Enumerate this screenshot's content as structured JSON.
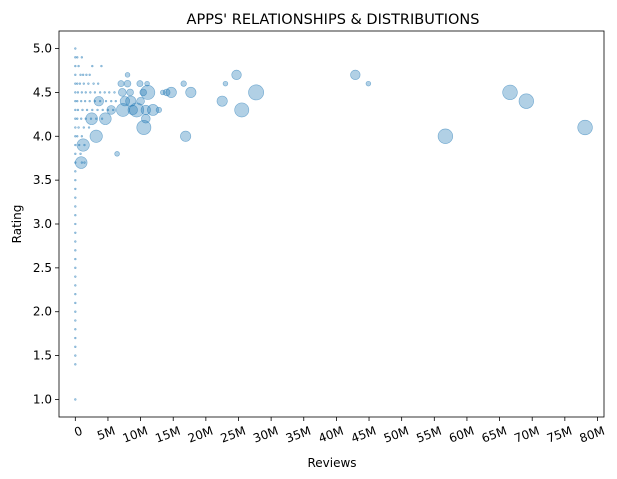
{
  "chart_data": {
    "type": "scatter",
    "title": "APPS' RELATIONSHIPS & DISTRIBUTIONS",
    "xlabel": "Reviews",
    "ylabel": "Rating",
    "xlim": [
      -2500000,
      81000000
    ],
    "ylim": [
      0.8,
      5.2
    ],
    "x_ticks": [
      0,
      5000000,
      10000000,
      15000000,
      20000000,
      25000000,
      30000000,
      35000000,
      40000000,
      45000000,
      50000000,
      55000000,
      60000000,
      65000000,
      70000000,
      75000000,
      80000000
    ],
    "x_tick_labels": [
      "0",
      "5M",
      "10M",
      "15M",
      "20M",
      "25M",
      "30M",
      "35M",
      "40M",
      "45M",
      "50M",
      "55M",
      "60M",
      "65M",
      "70M",
      "75M",
      "80M"
    ],
    "y_ticks": [
      1.0,
      1.5,
      2.0,
      2.5,
      3.0,
      3.5,
      4.0,
      4.5,
      5.0
    ],
    "y_tick_labels": [
      "1.0",
      "1.5",
      "2.0",
      "2.5",
      "3.0",
      "3.5",
      "4.0",
      "4.5",
      "5.0"
    ],
    "grid": false,
    "color": "#1f77b4",
    "opacity": 0.35,
    "points": [
      {
        "x": 0,
        "y": 5.0
      },
      {
        "x": 0,
        "y": 4.9
      },
      {
        "x": 0,
        "y": 4.8
      },
      {
        "x": 0,
        "y": 4.7
      },
      {
        "x": 0,
        "y": 4.6
      },
      {
        "x": 0,
        "y": 4.5
      },
      {
        "x": 0,
        "y": 4.4
      },
      {
        "x": 0,
        "y": 4.3
      },
      {
        "x": 0,
        "y": 4.2
      },
      {
        "x": 0,
        "y": 4.1
      },
      {
        "x": 0,
        "y": 4.0
      },
      {
        "x": 0,
        "y": 3.9
      },
      {
        "x": 0,
        "y": 3.8
      },
      {
        "x": 0,
        "y": 3.7
      },
      {
        "x": 0,
        "y": 3.6
      },
      {
        "x": 0,
        "y": 3.5
      },
      {
        "x": 0,
        "y": 3.4
      },
      {
        "x": 0,
        "y": 3.3
      },
      {
        "x": 0,
        "y": 3.2
      },
      {
        "x": 0,
        "y": 3.1
      },
      {
        "x": 0,
        "y": 3.0
      },
      {
        "x": 0,
        "y": 2.9
      },
      {
        "x": 0,
        "y": 2.8
      },
      {
        "x": 0,
        "y": 2.7
      },
      {
        "x": 0,
        "y": 2.6
      },
      {
        "x": 0,
        "y": 2.5
      },
      {
        "x": 0,
        "y": 2.4
      },
      {
        "x": 0,
        "y": 2.3
      },
      {
        "x": 0,
        "y": 2.2
      },
      {
        "x": 0,
        "y": 2.1
      },
      {
        "x": 0,
        "y": 2.0
      },
      {
        "x": 0,
        "y": 1.9
      },
      {
        "x": 0,
        "y": 1.8
      },
      {
        "x": 0,
        "y": 1.7
      },
      {
        "x": 0,
        "y": 1.6
      },
      {
        "x": 0,
        "y": 1.5
      },
      {
        "x": 0,
        "y": 1.4
      },
      {
        "x": 0,
        "y": 1.0
      },
      {
        "x": 300000,
        "y": 4.9
      },
      {
        "x": 500000,
        "y": 4.8
      },
      {
        "x": 800000,
        "y": 4.7
      },
      {
        "x": 1200000,
        "y": 4.7
      },
      {
        "x": 1700000,
        "y": 4.7
      },
      {
        "x": 2200000,
        "y": 4.7
      },
      {
        "x": 2600000,
        "y": 4.8
      },
      {
        "x": 4000000,
        "y": 4.8
      },
      {
        "x": 1000000,
        "y": 4.9
      },
      {
        "x": 300000,
        "y": 4.6
      },
      {
        "x": 700000,
        "y": 4.6
      },
      {
        "x": 1300000,
        "y": 4.6
      },
      {
        "x": 2000000,
        "y": 4.6
      },
      {
        "x": 2800000,
        "y": 4.6
      },
      {
        "x": 3500000,
        "y": 4.6
      },
      {
        "x": 400000,
        "y": 4.5
      },
      {
        "x": 1000000,
        "y": 4.5
      },
      {
        "x": 1600000,
        "y": 4.5
      },
      {
        "x": 2300000,
        "y": 4.5
      },
      {
        "x": 3000000,
        "y": 4.5
      },
      {
        "x": 3800000,
        "y": 4.5
      },
      {
        "x": 4500000,
        "y": 4.5
      },
      {
        "x": 5200000,
        "y": 4.5
      },
      {
        "x": 6000000,
        "y": 4.5
      },
      {
        "x": 300000,
        "y": 4.4
      },
      {
        "x": 900000,
        "y": 4.4
      },
      {
        "x": 1500000,
        "y": 4.4
      },
      {
        "x": 2200000,
        "y": 4.4
      },
      {
        "x": 3000000,
        "y": 4.4
      },
      {
        "x": 3800000,
        "y": 4.4
      },
      {
        "x": 4700000,
        "y": 4.4
      },
      {
        "x": 5500000,
        "y": 4.4
      },
      {
        "x": 6200000,
        "y": 4.4
      },
      {
        "x": 400000,
        "y": 4.3
      },
      {
        "x": 1100000,
        "y": 4.3
      },
      {
        "x": 1800000,
        "y": 4.3
      },
      {
        "x": 2600000,
        "y": 4.3
      },
      {
        "x": 3400000,
        "y": 4.3
      },
      {
        "x": 4200000,
        "y": 4.3
      },
      {
        "x": 5000000,
        "y": 4.3
      },
      {
        "x": 5800000,
        "y": 4.3
      },
      {
        "x": 300000,
        "y": 4.2
      },
      {
        "x": 900000,
        "y": 4.2
      },
      {
        "x": 1600000,
        "y": 4.2
      },
      {
        "x": 2400000,
        "y": 4.2
      },
      {
        "x": 3200000,
        "y": 4.2
      },
      {
        "x": 4100000,
        "y": 4.2
      },
      {
        "x": 500000,
        "y": 4.1
      },
      {
        "x": 1300000,
        "y": 4.1
      },
      {
        "x": 2100000,
        "y": 4.1
      },
      {
        "x": 300000,
        "y": 4.0
      },
      {
        "x": 1000000,
        "y": 4.0
      },
      {
        "x": 600000,
        "y": 3.9
      },
      {
        "x": 1400000,
        "y": 3.9
      },
      {
        "x": 800000,
        "y": 3.8
      },
      {
        "x": 1000000,
        "y": 3.7
      },
      {
        "x": 1400000,
        "y": 3.7
      },
      {
        "x": 2500000,
        "y": 4.2,
        "size": 90
      },
      {
        "x": 1200000,
        "y": 3.9,
        "size": 100
      },
      {
        "x": 900000,
        "y": 3.7,
        "size": 90
      },
      {
        "x": 3200000,
        "y": 4.0,
        "size": 100
      },
      {
        "x": 4600000,
        "y": 4.2,
        "size": 90
      },
      {
        "x": 3600000,
        "y": 4.4,
        "size": 60
      },
      {
        "x": 5500000,
        "y": 4.3,
        "size": 50
      },
      {
        "x": 6400000,
        "y": 3.8,
        "size": 15
      },
      {
        "x": 7000000,
        "y": 4.6,
        "size": 25
      },
      {
        "x": 7200000,
        "y": 4.5,
        "size": 40
      },
      {
        "x": 7300000,
        "y": 4.3,
        "size": 110
      },
      {
        "x": 7600000,
        "y": 4.4,
        "size": 60
      },
      {
        "x": 8000000,
        "y": 4.6,
        "size": 30
      },
      {
        "x": 8000000,
        "y": 4.7,
        "size": 15
      },
      {
        "x": 8400000,
        "y": 4.5,
        "size": 30
      },
      {
        "x": 8500000,
        "y": 4.4,
        "size": 70
      },
      {
        "x": 8800000,
        "y": 4.3,
        "size": 60
      },
      {
        "x": 9400000,
        "y": 4.3,
        "size": 130
      },
      {
        "x": 9900000,
        "y": 4.6,
        "size": 25
      },
      {
        "x": 10000000,
        "y": 4.4,
        "size": 40
      },
      {
        "x": 10400000,
        "y": 4.5,
        "size": 30
      },
      {
        "x": 10800000,
        "y": 4.3,
        "size": 60
      },
      {
        "x": 10500000,
        "y": 4.1,
        "size": 130
      },
      {
        "x": 10800000,
        "y": 4.2,
        "size": 50
      },
      {
        "x": 11000000,
        "y": 4.6,
        "size": 15
      },
      {
        "x": 11100000,
        "y": 4.5,
        "size": 130
      },
      {
        "x": 11900000,
        "y": 4.3,
        "size": 80
      },
      {
        "x": 12800000,
        "y": 4.3,
        "size": 20
      },
      {
        "x": 13400000,
        "y": 4.5,
        "size": 15
      },
      {
        "x": 14000000,
        "y": 4.5,
        "size": 30
      },
      {
        "x": 14700000,
        "y": 4.5,
        "size": 70
      },
      {
        "x": 16600000,
        "y": 4.6,
        "size": 20
      },
      {
        "x": 16900000,
        "y": 4.0,
        "size": 70
      },
      {
        "x": 17700000,
        "y": 4.5,
        "size": 70
      },
      {
        "x": 22500000,
        "y": 4.4,
        "size": 70
      },
      {
        "x": 23000000,
        "y": 4.6,
        "size": 15
      },
      {
        "x": 24700000,
        "y": 4.7,
        "size": 60
      },
      {
        "x": 25500000,
        "y": 4.3,
        "size": 130
      },
      {
        "x": 27700000,
        "y": 4.5,
        "size": 150
      },
      {
        "x": 42900000,
        "y": 4.7,
        "size": 60
      },
      {
        "x": 44900000,
        "y": 4.6,
        "size": 15
      },
      {
        "x": 56700000,
        "y": 4.0,
        "size": 140
      },
      {
        "x": 66600000,
        "y": 4.5,
        "size": 140
      },
      {
        "x": 69100000,
        "y": 4.4,
        "size": 140
      },
      {
        "x": 78100000,
        "y": 4.1,
        "size": 140
      }
    ]
  }
}
